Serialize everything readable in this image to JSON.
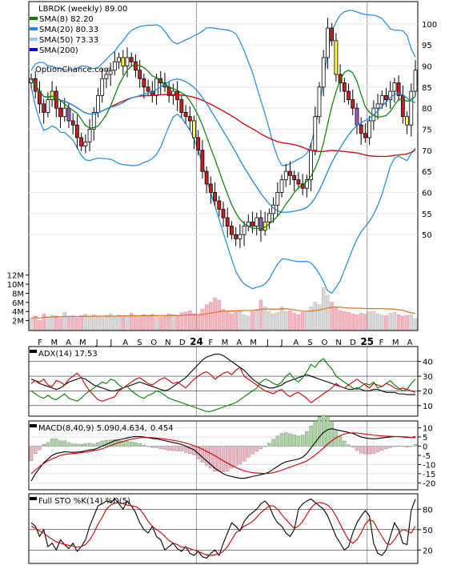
{
  "chart_data": [
    {
      "type": "candlestick",
      "title": "LBRDK (weekly) 89.00",
      "watermark": "OptionChance.com",
      "legend": [
        {
          "label": "SMA(8) 82.20",
          "color": "#008000"
        },
        {
          "label": "SMA(20) 80.33",
          "color": "#1e88e5"
        },
        {
          "label": "SMA(50) 73.33",
          "color": "#87cefa"
        },
        {
          "label": "SMA(200)",
          "color": "#0000cc"
        }
      ],
      "price_axis": [
        50,
        55,
        60,
        65,
        70,
        75,
        80,
        85,
        90,
        95,
        100
      ],
      "ylim": [
        43,
        103
      ],
      "x_ticks": [
        "F",
        "M",
        "A",
        "M",
        "J",
        "J",
        "A",
        "S",
        "O",
        "N",
        "D",
        "24",
        "F",
        "M",
        "A",
        "M",
        "J",
        "J",
        "A",
        "S",
        "O",
        "N",
        "D",
        "25",
        "F",
        "M",
        "A"
      ],
      "closes": [
        87,
        84,
        81,
        79,
        82,
        84,
        80,
        78,
        80,
        77,
        76,
        73,
        71,
        72,
        75,
        79,
        83,
        87,
        88,
        89,
        91,
        92,
        90,
        92,
        91,
        89,
        87,
        85,
        84,
        83,
        87,
        86,
        85,
        83,
        84,
        82,
        79,
        78,
        77,
        73,
        70,
        65,
        62,
        60,
        58,
        56,
        54,
        52,
        50,
        49,
        50,
        52,
        53,
        52,
        54,
        51,
        53,
        55,
        57,
        60,
        63,
        65,
        64,
        63,
        62,
        61,
        63,
        70,
        78,
        85,
        92,
        99,
        96,
        88,
        86,
        84,
        82,
        80,
        76,
        74,
        73,
        77,
        80,
        81,
        83,
        82,
        84,
        86,
        83,
        78,
        76,
        84,
        89
      ],
      "volume_axis": [
        "12M",
        "10M",
        "8M",
        "6M",
        "4M",
        "2M"
      ],
      "volume_max": 13,
      "volume": [
        2.5,
        3,
        2,
        3.5,
        2.8,
        3.2,
        3,
        2.5,
        3.8,
        2.8,
        3,
        2.6,
        3.1,
        3.4,
        2.9,
        3.3,
        3,
        2.7,
        3.1,
        3.5,
        2.8,
        3.2,
        3,
        2.9,
        3.6,
        3.1,
        2.9,
        3.3,
        3.2,
        3.4,
        3,
        2.8,
        3.1,
        3.5,
        3.3,
        3,
        3.7,
        3.9,
        4.2,
        3.5,
        3.3,
        4.5,
        5.5,
        6,
        7,
        6.5,
        4.5,
        4,
        3.5,
        3.8,
        4.2,
        3.3,
        3,
        4,
        4.5,
        6.5,
        5,
        4,
        3.5,
        3.8,
        5,
        4,
        4.2,
        3.6,
        3.3,
        3.8,
        4,
        5,
        6,
        5.5,
        9.2,
        7.5,
        6,
        5,
        4.2,
        4,
        3.8,
        3.5,
        3.3,
        3.6,
        3.4,
        3.9,
        4,
        3.5,
        3.2,
        3.1,
        3.6,
        3.8,
        3.3,
        3,
        3.1,
        3.3,
        2.4
      ]
    },
    {
      "type": "line",
      "title": "ADX(14) 17.53",
      "y_axis": [
        40,
        30,
        20,
        10
      ],
      "ylim": [
        5,
        48
      ],
      "series": [
        {
          "name": "ADX",
          "color": "#000000",
          "values": [
            28,
            27,
            25,
            24,
            23,
            22,
            21,
            22,
            24,
            26,
            27,
            28,
            29,
            28,
            26,
            24,
            23,
            22,
            21,
            20,
            20,
            21,
            22,
            23,
            24,
            25,
            26,
            25,
            24,
            23,
            22,
            21,
            20,
            21,
            23,
            25,
            27,
            29,
            32,
            35,
            38,
            41,
            43,
            44,
            45,
            45,
            44,
            42,
            40,
            38,
            36,
            34,
            31,
            28,
            26,
            24,
            23,
            22,
            22,
            23,
            24,
            26,
            27,
            28,
            29,
            30,
            31,
            30,
            29,
            28,
            27,
            26,
            25,
            24,
            23,
            22,
            21,
            21,
            22,
            21,
            20,
            20,
            21,
            21,
            20,
            19,
            19,
            19,
            18,
            18,
            17.5,
            17.5,
            17.5
          ]
        },
        {
          "name": "+DI",
          "color": "#008000",
          "values": [
            20,
            18,
            16,
            15,
            17,
            15,
            14,
            16,
            18,
            15,
            14,
            13,
            15,
            18,
            20,
            22,
            24,
            26,
            25,
            28,
            27,
            24,
            22,
            23,
            20,
            18,
            16,
            15,
            17,
            18,
            20,
            19,
            17,
            15,
            14,
            13,
            12,
            11,
            10,
            9,
            8,
            7,
            6,
            6,
            7,
            8,
            9,
            10,
            11,
            12,
            14,
            16,
            18,
            20,
            22,
            26,
            28,
            27,
            25,
            24,
            26,
            30,
            32,
            28,
            26,
            29,
            33,
            38,
            36,
            40,
            42,
            38,
            35,
            30,
            28,
            26,
            24,
            22,
            21,
            23,
            25,
            24,
            26,
            22,
            23,
            25,
            27,
            24,
            22,
            20,
            21,
            25,
            28
          ]
        },
        {
          "name": "-DI",
          "color": "#cc0000",
          "values": [
            25,
            27,
            26,
            28,
            24,
            23,
            27,
            26,
            24,
            28,
            30,
            32,
            29,
            24,
            20,
            17,
            14,
            13,
            14,
            15,
            16,
            20,
            22,
            24,
            26,
            28,
            29,
            27,
            25,
            24,
            26,
            28,
            29,
            27,
            25,
            26,
            24,
            22,
            25,
            28,
            30,
            32,
            33,
            31,
            28,
            30,
            32,
            33,
            31,
            34,
            36,
            30,
            28,
            26,
            24,
            22,
            20,
            19,
            18,
            20,
            21,
            18,
            16,
            18,
            19,
            17,
            15,
            12,
            14,
            16,
            18,
            20,
            22,
            25,
            23,
            22,
            24,
            26,
            28,
            26,
            24,
            22,
            25,
            24,
            23,
            25,
            24,
            22,
            21,
            22,
            21,
            20,
            19
          ]
        }
      ]
    },
    {
      "type": "histogram",
      "title": "MACD(8,40,9) 5.090,",
      "title_values": [
        {
          "text": "4.634,",
          "color": "#cc0000"
        },
        {
          "text": "0.454",
          "color": "#1a56c4"
        }
      ],
      "y_axis": [
        10,
        5,
        0,
        -5,
        -10,
        -15,
        -20
      ],
      "ylim": [
        -22,
        12
      ],
      "series": [
        {
          "name": "MACD",
          "color": "#000000",
          "values": [
            -19,
            -15,
            -12,
            -9,
            -7,
            -5,
            -4,
            -3.5,
            -3,
            -3.2,
            -3.4,
            -3.2,
            -3,
            -2.5,
            -2,
            -1.8,
            -1,
            0,
            1,
            2,
            3,
            3.5,
            4,
            4.5,
            5,
            5.2,
            5.3,
            5,
            4.6,
            4.2,
            4,
            3.5,
            3,
            2.5,
            2,
            1.5,
            1,
            0,
            -1,
            -2,
            -4,
            -6,
            -8,
            -10,
            -12,
            -13.5,
            -15,
            -16,
            -16.5,
            -17,
            -17.5,
            -17.5,
            -17,
            -16.5,
            -16,
            -15.5,
            -15,
            -14,
            -12.5,
            -11,
            -9.5,
            -8.5,
            -8,
            -7.5,
            -7,
            -6,
            -4,
            -1,
            2,
            5,
            7.5,
            9,
            9.5,
            9,
            8.5,
            8,
            7.5,
            7,
            6,
            5,
            4.5,
            4.2,
            4,
            4.2,
            4.5,
            4.8,
            5,
            5.2,
            5.3,
            5,
            4.7,
            4.8,
            5.1
          ]
        },
        {
          "name": "Signal",
          "color": "#cc0000",
          "values": [
            -15,
            -13,
            -11,
            -9.5,
            -8,
            -7,
            -6,
            -5,
            -4.5,
            -4.2,
            -4,
            -3.8,
            -3.5,
            -3.2,
            -2.8,
            -2.4,
            -2,
            -1.4,
            -0.6,
            0.3,
            1.2,
            2,
            2.6,
            3.2,
            3.8,
            4.2,
            4.6,
            4.7,
            4.7,
            4.6,
            4.4,
            4.2,
            3.9,
            3.6,
            3.2,
            2.8,
            2.3,
            1.7,
            1,
            0.3,
            -0.6,
            -1.6,
            -2.8,
            -4,
            -5.2,
            -6.6,
            -8,
            -9.2,
            -10.5,
            -11.6,
            -12.6,
            -13.4,
            -14,
            -14.4,
            -14.6,
            -14.8,
            -14.9,
            -14.8,
            -14.4,
            -13.8,
            -13,
            -12.2,
            -11.4,
            -10.6,
            -9.8,
            -9,
            -8,
            -6.5,
            -4.8,
            -3,
            -1,
            1.2,
            3,
            4.6,
            5.8,
            6.6,
            7.1,
            7.3,
            7.2,
            6.9,
            6.6,
            6.3,
            6,
            5.8,
            5.6,
            5.5,
            5.4,
            5.3,
            5.2,
            5.1,
            5,
            4.8,
            4.63
          ]
        }
      ]
    },
    {
      "type": "line",
      "title": "Full STO %K(14) %D(5)",
      "y_axis": [
        80,
        50,
        20
      ],
      "ylim": [
        5,
        98
      ],
      "series": [
        {
          "name": "%K",
          "color": "#000000",
          "values": [
            60,
            55,
            40,
            50,
            25,
            30,
            20,
            35,
            28,
            22,
            30,
            18,
            25,
            35,
            55,
            70,
            85,
            88,
            92,
            90,
            95,
            88,
            80,
            92,
            85,
            75,
            60,
            50,
            45,
            55,
            40,
            35,
            20,
            25,
            30,
            22,
            18,
            25,
            15,
            12,
            18,
            10,
            8,
            15,
            20,
            12,
            30,
            45,
            60,
            55,
            48,
            62,
            70,
            75,
            80,
            88,
            92,
            85,
            70,
            60,
            55,
            45,
            40,
            50,
            80,
            88,
            92,
            95,
            90,
            85,
            80,
            70,
            55,
            40,
            30,
            20,
            25,
            45,
            60,
            70,
            78,
            70,
            30,
            15,
            12,
            20,
            40,
            60,
            50,
            30,
            28,
            78,
            95
          ]
        },
        {
          "name": "%D",
          "color": "#cc0000",
          "values": [
            55,
            52,
            48,
            45,
            40,
            36,
            32,
            30,
            28,
            27,
            26,
            24,
            25,
            28,
            35,
            45,
            58,
            68,
            80,
            86,
            89,
            90,
            88,
            86,
            85,
            84,
            80,
            72,
            62,
            55,
            50,
            46,
            40,
            34,
            30,
            28,
            24,
            24,
            22,
            20,
            18,
            15,
            13,
            12,
            13,
            14,
            18,
            25,
            35,
            45,
            50,
            55,
            58,
            62,
            68,
            75,
            80,
            85,
            85,
            80,
            72,
            65,
            58,
            52,
            55,
            62,
            72,
            82,
            88,
            90,
            89,
            86,
            80,
            70,
            58,
            46,
            35,
            30,
            35,
            45,
            58,
            65,
            62,
            50,
            40,
            30,
            28,
            35,
            45,
            50,
            48,
            45,
            55
          ]
        }
      ]
    }
  ]
}
